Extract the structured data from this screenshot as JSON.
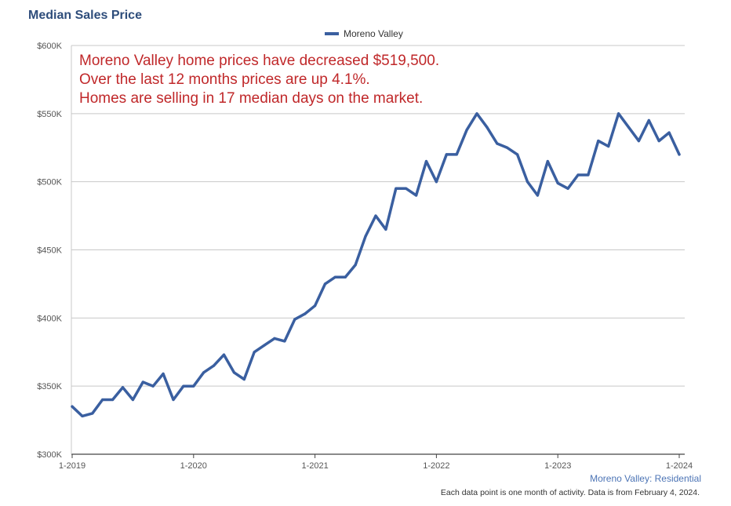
{
  "chart_data": {
    "type": "line",
    "title": "Median Sales Price",
    "legend": [
      "Moreno Valley"
    ],
    "ylabel": "",
    "xlabel": "",
    "ylim": [
      300000,
      600000
    ],
    "y_ticks": [
      300000,
      350000,
      400000,
      450000,
      500000,
      550000,
      600000
    ],
    "y_tick_labels": [
      "$300K",
      "$350K",
      "$400K",
      "$450K",
      "$500K",
      "$550K",
      "$600K"
    ],
    "x_ticks": [
      0,
      12,
      24,
      36,
      48,
      60
    ],
    "x_tick_labels": [
      "1-2019",
      "1-2020",
      "1-2021",
      "1-2022",
      "1-2023",
      "1-2024"
    ],
    "series": [
      {
        "name": "Moreno Valley",
        "color": "#3a5fa0",
        "values": [
          335000,
          328000,
          330000,
          340000,
          340000,
          349000,
          340000,
          353000,
          350000,
          359000,
          340000,
          350000,
          350000,
          360000,
          365000,
          373000,
          360000,
          355000,
          375000,
          380000,
          385000,
          383000,
          399000,
          403000,
          409000,
          425000,
          430000,
          430000,
          439000,
          460000,
          475000,
          465000,
          495000,
          495000,
          490000,
          515000,
          500000,
          520000,
          520000,
          538000,
          550000,
          540000,
          528000,
          525000,
          520000,
          500000,
          490000,
          515000,
          499000,
          495000,
          505000,
          505000,
          530000,
          526000,
          550000,
          540000,
          530000,
          545000,
          530000,
          536000,
          520000
        ]
      }
    ]
  },
  "annotation": {
    "line1": "Moreno Valley home prices have decreased $519,500.",
    "line2": "Over the last 12 months prices are up 4.1%.",
    "line3": "Homes are selling in 17 median days on the market."
  },
  "footer": {
    "series_label": "Moreno Valley: Residential",
    "note": "Each data point is one month of activity. Data is from February 4, 2024."
  },
  "colors": {
    "line": "#3a5fa0",
    "annotation": "#c0282a",
    "title": "#2e4d7b"
  }
}
